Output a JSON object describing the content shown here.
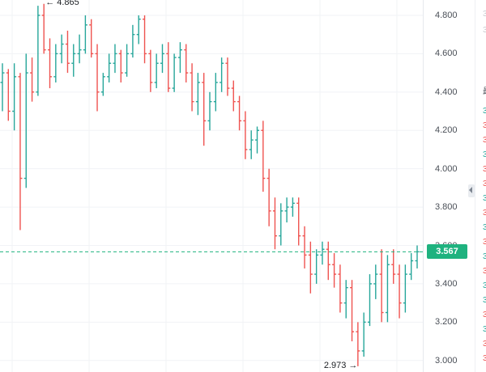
{
  "chart_data": {
    "type": "ohlc",
    "ylim": [
      2.94,
      4.88
    ],
    "yticks": [
      "4.800",
      "4.600",
      "4.400",
      "4.200",
      "4.000",
      "3.800",
      "3.600",
      "3.400",
      "3.200",
      "3.000"
    ],
    "ytick_values": [
      4.8,
      4.6,
      4.4,
      4.2,
      4.0,
      3.8,
      3.6,
      3.4,
      3.2,
      3.0
    ],
    "last_price": "3.567",
    "last_price_value": 3.567,
    "high_label": "4.865",
    "low_label": "2.973",
    "up_color": "#26a69a",
    "down_color": "#ef5350",
    "bars": [
      [
        4.45,
        4.55,
        4.3,
        4.5
      ],
      [
        4.5,
        4.52,
        4.25,
        4.3
      ],
      [
        4.3,
        4.55,
        4.2,
        4.48
      ],
      [
        4.48,
        4.5,
        3.68,
        3.95
      ],
      [
        3.95,
        4.6,
        3.9,
        4.5
      ],
      [
        4.5,
        4.58,
        4.35,
        4.4
      ],
      [
        4.4,
        4.85,
        4.38,
        4.8
      ],
      [
        4.8,
        4.86,
        4.6,
        4.62
      ],
      [
        4.62,
        4.68,
        4.42,
        4.48
      ],
      [
        4.48,
        4.65,
        4.45,
        4.6
      ],
      [
        4.6,
        4.7,
        4.55,
        4.65
      ],
      [
        4.65,
        4.72,
        4.5,
        4.55
      ],
      [
        4.55,
        4.65,
        4.48,
        4.6
      ],
      [
        4.6,
        4.7,
        4.55,
        4.62
      ],
      [
        4.62,
        4.8,
        4.6,
        4.75
      ],
      [
        4.75,
        4.78,
        4.58,
        4.6
      ],
      [
        4.6,
        4.65,
        4.3,
        4.4
      ],
      [
        4.4,
        4.5,
        4.38,
        4.48
      ],
      [
        4.48,
        4.6,
        4.45,
        4.55
      ],
      [
        4.55,
        4.65,
        4.5,
        4.6
      ],
      [
        4.6,
        4.62,
        4.45,
        4.5
      ],
      [
        4.5,
        4.65,
        4.48,
        4.6
      ],
      [
        4.6,
        4.75,
        4.58,
        4.7
      ],
      [
        4.7,
        4.8,
        4.65,
        4.78
      ],
      [
        4.78,
        4.8,
        4.55,
        4.6
      ],
      [
        4.6,
        4.62,
        4.4,
        4.45
      ],
      [
        4.45,
        4.6,
        4.42,
        4.55
      ],
      [
        4.55,
        4.65,
        4.5,
        4.6
      ],
      [
        4.6,
        4.66,
        4.4,
        4.42
      ],
      [
        4.42,
        4.6,
        4.4,
        4.58
      ],
      [
        4.58,
        4.66,
        4.5,
        4.62
      ],
      [
        4.62,
        4.65,
        4.45,
        4.5
      ],
      [
        4.5,
        4.55,
        4.3,
        4.35
      ],
      [
        4.35,
        4.5,
        4.28,
        4.45
      ],
      [
        4.45,
        4.5,
        4.12,
        4.25
      ],
      [
        4.25,
        4.4,
        4.2,
        4.35
      ],
      [
        4.35,
        4.5,
        4.3,
        4.45
      ],
      [
        4.45,
        4.58,
        4.4,
        4.55
      ],
      [
        4.55,
        4.58,
        4.38,
        4.42
      ],
      [
        4.42,
        4.46,
        4.3,
        4.35
      ],
      [
        4.35,
        4.38,
        4.2,
        4.25
      ],
      [
        4.25,
        4.3,
        4.05,
        4.1
      ],
      [
        4.1,
        4.2,
        4.05,
        4.15
      ],
      [
        4.15,
        4.22,
        4.08,
        4.2
      ],
      [
        4.2,
        4.25,
        3.88,
        3.95
      ],
      [
        3.95,
        4.0,
        3.7,
        3.78
      ],
      [
        3.78,
        3.85,
        3.58,
        3.65
      ],
      [
        3.65,
        3.82,
        3.6,
        3.78
      ],
      [
        3.78,
        3.85,
        3.72,
        3.8
      ],
      [
        3.8,
        3.85,
        3.75,
        3.82
      ],
      [
        3.82,
        3.85,
        3.6,
        3.65
      ],
      [
        3.65,
        3.7,
        3.48,
        3.55
      ],
      [
        3.55,
        3.62,
        3.35,
        3.45
      ],
      [
        3.45,
        3.58,
        3.4,
        3.55
      ],
      [
        3.55,
        3.62,
        3.5,
        3.58
      ],
      [
        3.58,
        3.62,
        3.42,
        3.5
      ],
      [
        3.5,
        3.56,
        3.38,
        3.45
      ],
      [
        3.45,
        3.5,
        3.25,
        3.3
      ],
      [
        3.3,
        3.42,
        3.22,
        3.38
      ],
      [
        3.38,
        3.42,
        3.1,
        3.15
      ],
      [
        3.15,
        3.2,
        2.97,
        3.05
      ],
      [
        3.05,
        3.25,
        3.02,
        3.2
      ],
      [
        3.2,
        3.45,
        3.18,
        3.4
      ],
      [
        3.4,
        3.5,
        3.32,
        3.45
      ],
      [
        3.45,
        3.58,
        3.2,
        3.25
      ],
      [
        3.25,
        3.55,
        3.2,
        3.5
      ],
      [
        3.5,
        3.58,
        3.4,
        3.45
      ],
      [
        3.45,
        3.5,
        3.22,
        3.3
      ],
      [
        3.3,
        3.5,
        3.25,
        3.45
      ],
      [
        3.45,
        3.56,
        3.42,
        3.52
      ],
      [
        3.52,
        3.6,
        3.48,
        3.567
      ]
    ]
  },
  "side_panel": {
    "header_digits": [
      "3",
      "3"
    ],
    "label_glyph": "最",
    "cells": [
      {
        "text": "3",
        "color": "#26a69a"
      },
      {
        "text": "3",
        "color": "#ef5350"
      },
      {
        "text": "3",
        "color": "#ef5350"
      },
      {
        "text": "3",
        "color": "#26a69a"
      },
      {
        "text": "3",
        "color": "#ef5350"
      },
      {
        "text": "3",
        "color": "#ef5350"
      },
      {
        "text": "3",
        "color": "#26a69a"
      },
      {
        "text": "3",
        "color": "#ef5350"
      },
      {
        "text": "3",
        "color": "#26a69a"
      },
      {
        "text": "3",
        "color": "#ef5350"
      },
      {
        "text": "3",
        "color": "#26a69a"
      },
      {
        "text": "3",
        "color": "#ef5350"
      },
      {
        "text": "3",
        "color": "#26a69a"
      },
      {
        "text": "3",
        "color": "#26a69a"
      },
      {
        "text": "3",
        "color": "#ef5350"
      },
      {
        "text": "3",
        "color": "#26a69a"
      },
      {
        "text": "3",
        "color": "#ef5350"
      },
      {
        "text": "3",
        "color": "#ef5350"
      }
    ]
  }
}
